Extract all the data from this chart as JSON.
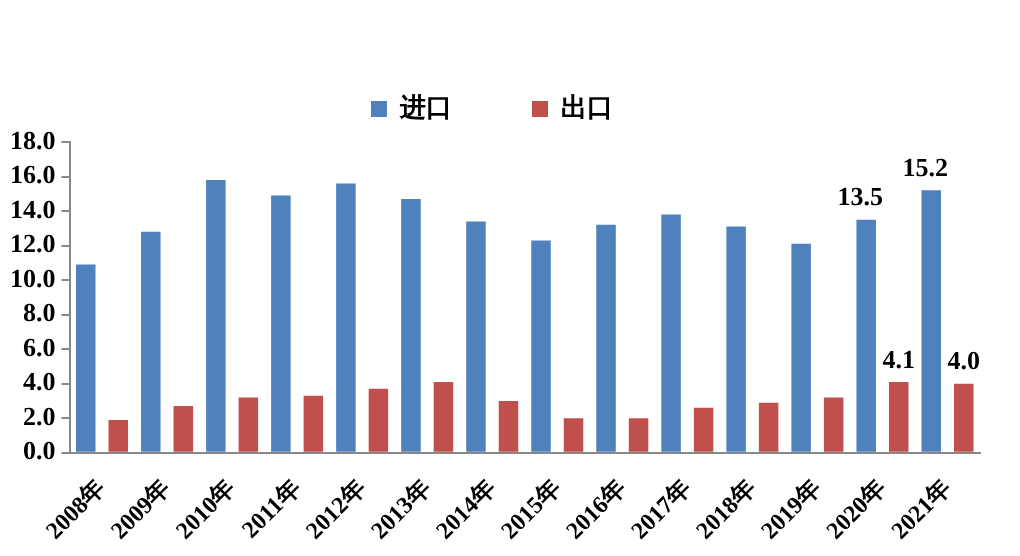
{
  "chart_data": {
    "type": "bar",
    "categories": [
      "2008年",
      "2009年",
      "2010年",
      "2011年",
      "2012年",
      "2013年",
      "2014年",
      "2015年",
      "2016年",
      "2017年",
      "2018年",
      "2019年",
      "2020年",
      "2021年"
    ],
    "series": [
      {
        "name": "进口",
        "color": "#4f81bd",
        "values": [
          10.9,
          12.8,
          15.8,
          14.9,
          15.6,
          14.7,
          13.4,
          12.3,
          13.2,
          13.8,
          13.1,
          12.1,
          13.5,
          15.2
        ],
        "value_labels": [
          null,
          null,
          null,
          null,
          null,
          null,
          null,
          null,
          null,
          null,
          null,
          null,
          "13.5",
          "15.2"
        ]
      },
      {
        "name": "出口",
        "color": "#c0504d",
        "values": [
          1.9,
          2.7,
          3.2,
          3.3,
          3.7,
          4.1,
          3.0,
          2.0,
          2.0,
          2.6,
          2.9,
          3.2,
          4.1,
          4.0
        ],
        "value_labels": [
          null,
          null,
          null,
          null,
          null,
          null,
          null,
          null,
          null,
          null,
          null,
          null,
          "4.1",
          "4.0"
        ]
      }
    ],
    "ylim": [
      0,
      18
    ],
    "yticks": [
      {
        "value": 0,
        "label": "0.0"
      },
      {
        "value": 2,
        "label": "2.0"
      },
      {
        "value": 4,
        "label": "4.0"
      },
      {
        "value": 6,
        "label": "6.0"
      },
      {
        "value": 8,
        "label": "8.0"
      },
      {
        "value": 10,
        "label": "10.0"
      },
      {
        "value": 12,
        "label": "12.0"
      },
      {
        "value": 14,
        "label": "14.0"
      },
      {
        "value": 16,
        "label": "16.0"
      },
      {
        "value": 18,
        "label": "18.0"
      }
    ],
    "grid": false,
    "legend": "top"
  }
}
